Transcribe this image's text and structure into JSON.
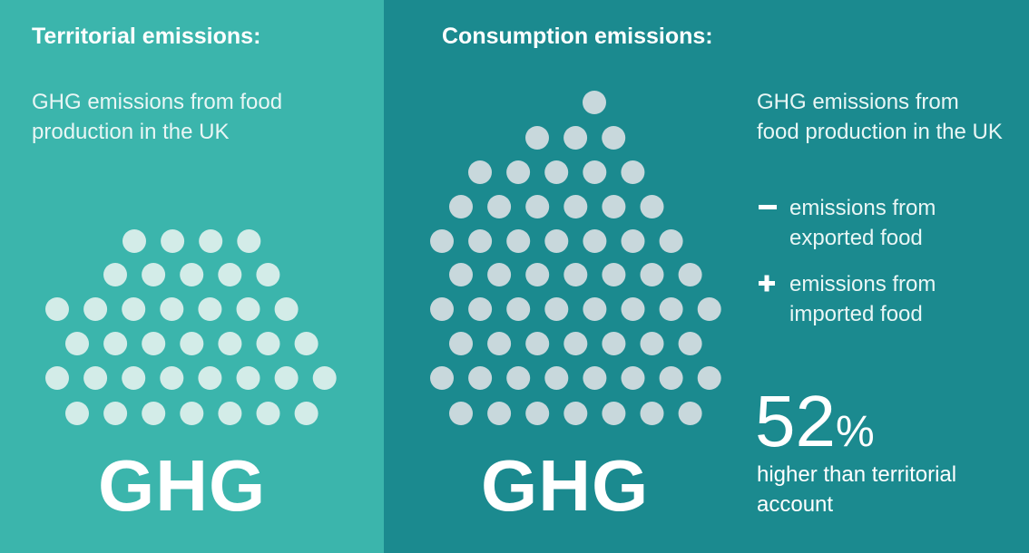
{
  "territorial": {
    "title": "Territorial emissions:",
    "description": "GHG emissions from food production in the UK",
    "label": "GHG"
  },
  "consumption": {
    "title": "Consumption emissions:",
    "description": "GHG emissions from food production in the UK",
    "adjustments": [
      "emissions from exported food",
      "emissions from imported food"
    ],
    "label": "GHG",
    "stat": {
      "number": "52",
      "unit": "%",
      "caption": "higher than territorial account"
    }
  }
}
